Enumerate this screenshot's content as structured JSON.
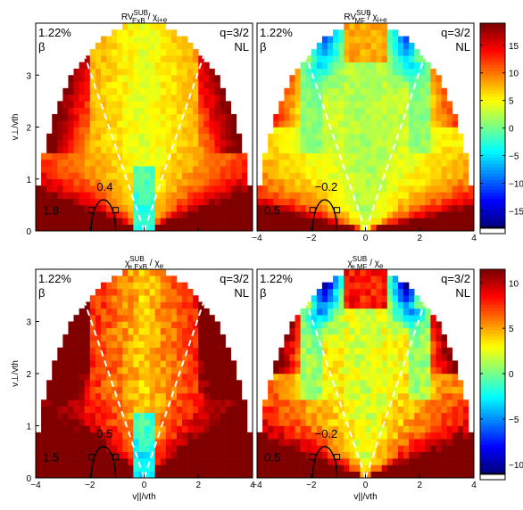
{
  "chart_data": [
    {
      "type": "heatmap",
      "title_main": "RV",
      "title_sup": "SUB",
      "title_sub": "ExB",
      "title_rest": " / χ",
      "title_rest_sub": "i+e",
      "corner_left": [
        "1.22%",
        "β"
      ],
      "corner_right": [
        "q=3/2",
        "NL"
      ],
      "xlim": [
        -4,
        4
      ],
      "ylim": [
        0,
        4
      ],
      "xticks": [],
      "yticks": [
        0,
        1,
        2,
        3
      ],
      "xlabel": "",
      "ylabel": "v⊥/vth",
      "contour_label": "0.4",
      "side_value": "1.8",
      "pattern": "exb",
      "colorbar_group": 0
    },
    {
      "type": "heatmap",
      "title_main": "RV",
      "title_sup": "SUB",
      "title_sub": "MF",
      "title_rest": " / χ",
      "title_rest_sub": "i+e",
      "corner_left": [
        "1.22%",
        "β"
      ],
      "corner_right": [
        "q=3/2",
        "NL"
      ],
      "xlim": [
        -4,
        4
      ],
      "ylim": [
        0,
        4
      ],
      "xticks": [
        -4,
        -2,
        0,
        2,
        4
      ],
      "yticks": [],
      "xlabel": "",
      "ylabel": "",
      "contour_label": "−0.2",
      "side_value": "0.5",
      "pattern": "mf",
      "colorbar_group": 0
    },
    {
      "type": "heatmap",
      "title_main": "χ",
      "title_sup": "SUB",
      "title_sub": "e,ExB",
      "title_rest": " / χ",
      "title_rest_sub": "e",
      "corner_left": [
        "1.22%",
        "β"
      ],
      "corner_right": [
        "q=3/2",
        "NL"
      ],
      "xlim": [
        -4,
        4
      ],
      "ylim": [
        0,
        4
      ],
      "xticks": [
        -4,
        -2,
        0,
        2,
        4
      ],
      "yticks": [
        0,
        1,
        2,
        3
      ],
      "xlabel": "v||/vth",
      "ylabel": "v⊥/vth",
      "contour_label": "0.5",
      "side_value": "1.5",
      "pattern": "exb",
      "colorbar_group": 1
    },
    {
      "type": "heatmap",
      "title_main": "χ",
      "title_sup": "SUB",
      "title_sub": "e,MF",
      "title_rest": " / χ",
      "title_rest_sub": "e",
      "corner_left": [
        "1.22%",
        "β"
      ],
      "corner_right": [
        "q=3/2",
        "NL"
      ],
      "xlim": [
        -4,
        4
      ],
      "ylim": [
        0,
        4
      ],
      "xticks": [
        -4,
        -2,
        0,
        2,
        4
      ],
      "yticks": [],
      "xlabel": "v||/vth",
      "ylabel": "",
      "contour_label": "−0.2",
      "side_value": "0.5",
      "pattern": "mf",
      "colorbar_group": 1
    }
  ],
  "x_tick_labels_first": [
    -4,
    -2,
    0,
    2
  ],
  "colorbars": [
    {
      "min": -18,
      "max": 19,
      "ticks": [
        -15,
        -10,
        -5,
        0,
        5,
        10,
        15
      ]
    },
    {
      "min": -11,
      "max": 11.5,
      "ticks": [
        -10,
        -5,
        0,
        5,
        10
      ]
    }
  ]
}
